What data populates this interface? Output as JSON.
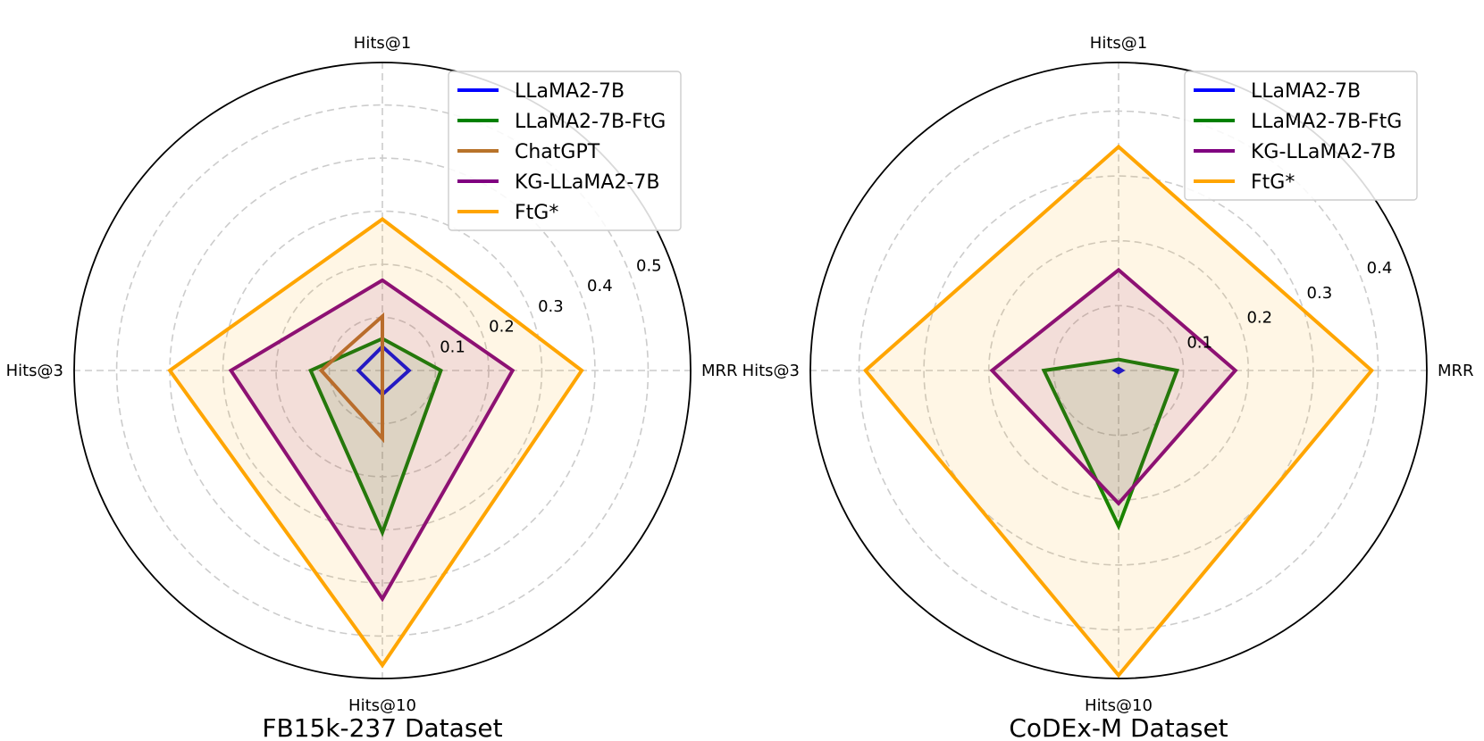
{
  "chart_data": [
    {
      "type": "radar",
      "title": "FB15k-237 Dataset",
      "axes": [
        "MRR",
        "Hits@1",
        "Hits@3",
        "Hits@10"
      ],
      "rmax": 0.58,
      "rings": [
        0.1,
        0.2,
        0.3,
        0.4,
        0.5
      ],
      "tick_labels": [
        "0.1",
        "0.2",
        "0.3",
        "0.4",
        "0.5"
      ],
      "legend_position": "top-right",
      "series": [
        {
          "name": "LLaMA2-7B",
          "color": "#0000ff",
          "values": [
            0.05,
            0.045,
            0.045,
            0.045
          ],
          "fill": false
        },
        {
          "name": "LLaMA2-7B-FtG",
          "color": "#008000",
          "values": [
            0.11,
            0.06,
            0.135,
            0.305
          ],
          "fill": true
        },
        {
          "name": "ChatGPT",
          "color": "#b8732a",
          "values": [
            0.0,
            0.102,
            0.115,
            0.128
          ],
          "fill": false
        },
        {
          "name": "KG-LLaMA2-7B",
          "color": "#800080",
          "values": [
            0.245,
            0.17,
            0.285,
            0.43
          ],
          "fill": true
        },
        {
          "name": "FtG*",
          "color": "#ffa500",
          "values": [
            0.375,
            0.285,
            0.4,
            0.555
          ],
          "fill": true
        }
      ]
    },
    {
      "type": "radar",
      "title": "CoDEx-M Dataset",
      "axes": [
        "MRR",
        "Hits@1",
        "Hits@3",
        "Hits@10"
      ],
      "rmax": 0.475,
      "rings": [
        0.1,
        0.2,
        0.3,
        0.4
      ],
      "tick_labels": [
        "0.1",
        "0.2",
        "0.3",
        "0.4"
      ],
      "legend_position": "top-right",
      "series": [
        {
          "name": "LLaMA2-7B",
          "color": "#0000ff",
          "values": [
            0.005,
            0.003,
            0.005,
            0.003
          ],
          "fill": false
        },
        {
          "name": "LLaMA2-7B-FtG",
          "color": "#008000",
          "values": [
            0.09,
            0.017,
            0.115,
            0.24
          ],
          "fill": true
        },
        {
          "name": "KG-LLaMA2-7B",
          "color": "#800080",
          "values": [
            0.18,
            0.155,
            0.195,
            0.205
          ],
          "fill": true
        },
        {
          "name": "FtG*",
          "color": "#ffa500",
          "values": [
            0.39,
            0.345,
            0.39,
            0.47
          ],
          "fill": true
        }
      ]
    }
  ]
}
